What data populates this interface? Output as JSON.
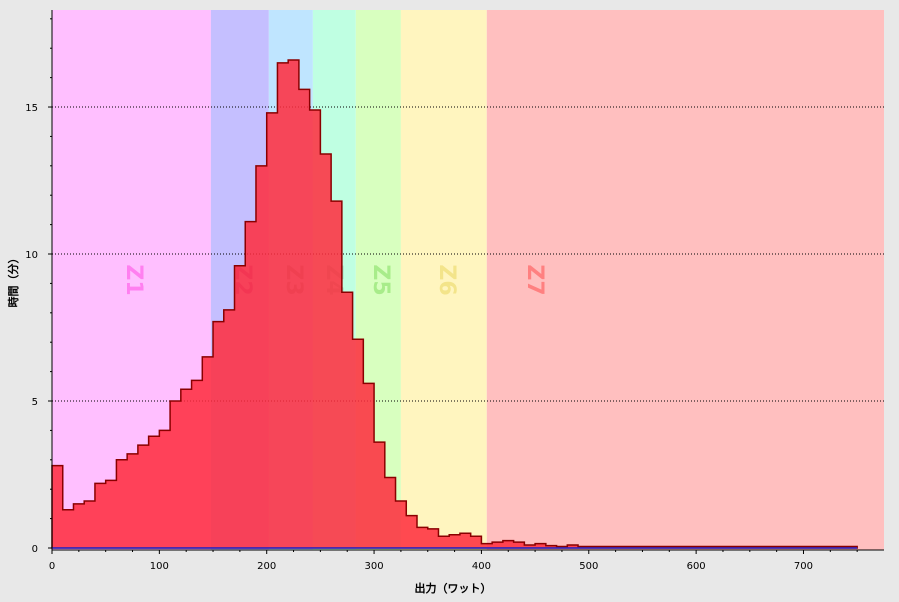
{
  "chart_data": {
    "type": "area",
    "title": "",
    "xlabel": "出力（ワット）",
    "ylabel": "時間（分）",
    "xlim": [
      0,
      775
    ],
    "ylim": [
      0,
      18.3
    ],
    "x_ticks": [
      0,
      100,
      200,
      300,
      400,
      500,
      600,
      700
    ],
    "y_ticks": [
      0,
      5,
      10,
      15
    ],
    "grid": "horizontal-dotted",
    "bin_width": 10,
    "bin_start": 0,
    "series": [
      {
        "color": "#ff2a3c",
        "values": [
          2.8,
          1.3,
          1.5,
          1.6,
          2.2,
          2.3,
          3.0,
          3.2,
          3.5,
          3.8,
          4.0,
          5.0,
          5.4,
          5.7,
          6.5,
          7.7,
          8.1,
          9.6,
          11.1,
          13.0,
          14.8,
          16.5,
          16.6,
          15.6,
          14.9,
          13.4,
          11.8,
          8.7,
          7.1,
          5.6,
          3.6,
          2.4,
          1.6,
          1.1,
          0.7,
          0.65,
          0.4,
          0.45,
          0.5,
          0.4,
          0.15,
          0.2,
          0.25,
          0.2,
          0.1,
          0.15,
          0.08,
          0.05,
          0.1,
          0.05,
          0.05,
          0.05,
          0.05,
          0.05,
          0.05,
          0.05,
          0.05,
          0.05,
          0.05,
          0.05,
          0.05,
          0.05,
          0.05,
          0.05,
          0.05,
          0.05,
          0.05,
          0.05,
          0.05,
          0.05,
          0.05,
          0.05,
          0.05,
          0.05,
          0.05
        ]
      }
    ],
    "zones": [
      {
        "label": "Z1",
        "from": 0,
        "to": 148,
        "color": "#ffbfff",
        "label_color": "#ff7ff0"
      },
      {
        "label": "Z2",
        "from": 148,
        "to": 202,
        "color": "#c5bfff",
        "label_color": "#b07ad8"
      },
      {
        "label": "Z3",
        "from": 202,
        "to": 243,
        "color": "#bfe5ff",
        "label_color": "#9ab8c8"
      },
      {
        "label": "Z4",
        "from": 243,
        "to": 283,
        "color": "#bfffe2",
        "label_color": "#9ce0c2"
      },
      {
        "label": "Z5",
        "from": 283,
        "to": 325,
        "color": "#d8ffbf",
        "label_color": "#a8ec8a"
      },
      {
        "label": "Z6",
        "from": 325,
        "to": 405,
        "color": "#fff5bf",
        "label_color": "#f3e48a"
      },
      {
        "label": "Z7",
        "from": 405,
        "to": 775,
        "color": "#ffbfbf",
        "label_color": "#ff8080"
      }
    ]
  }
}
